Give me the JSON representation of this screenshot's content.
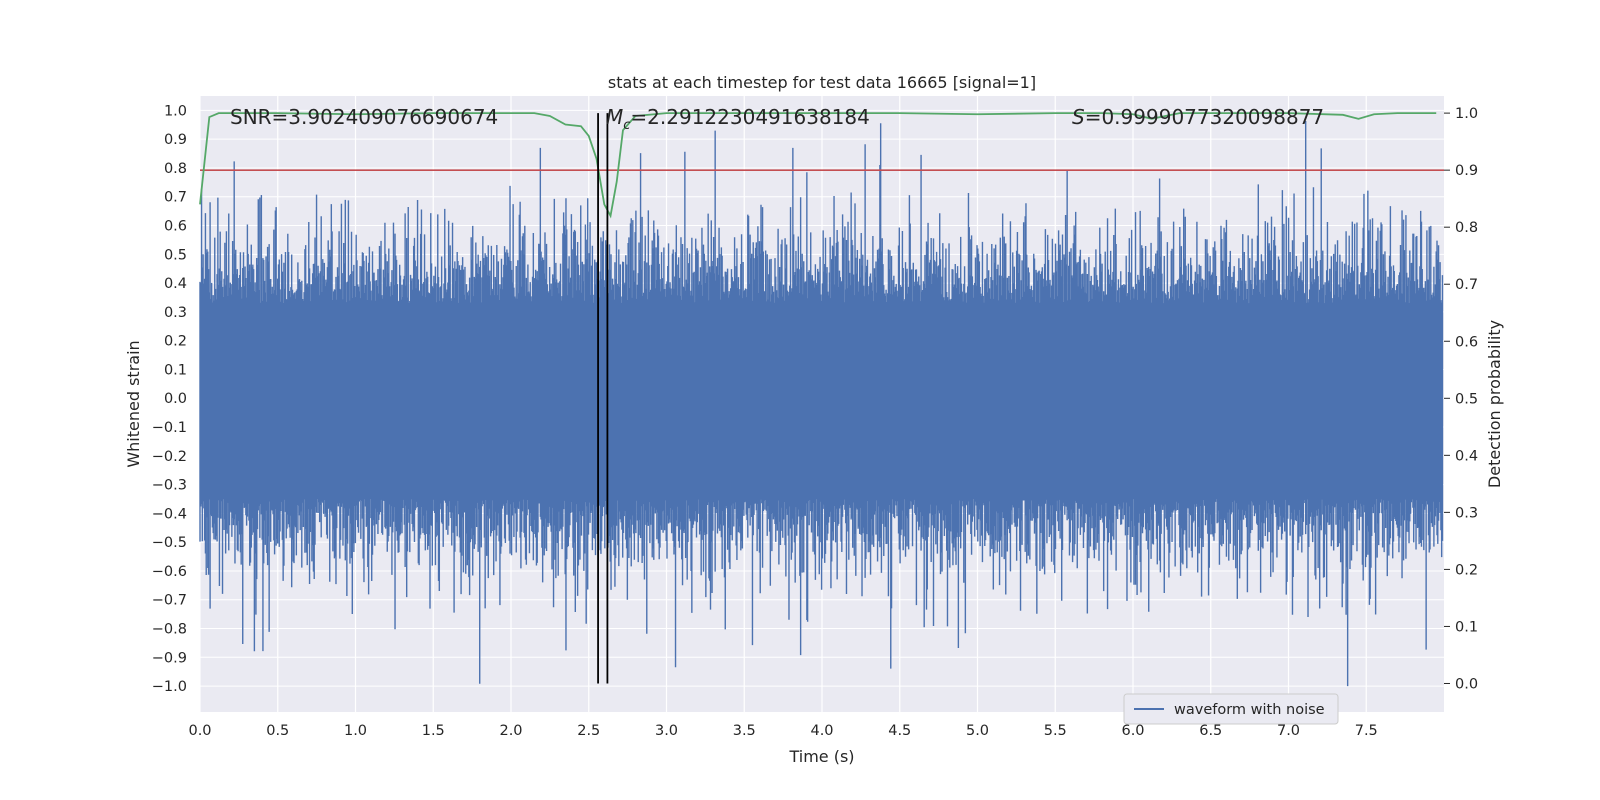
{
  "chart_data": {
    "type": "line",
    "title": "stats at each timestep for test data 16665 [signal=1]",
    "xlabel": "Time (s)",
    "ylabel_left": "Whitened strain",
    "ylabel_right": "Detection probability",
    "xlim": [
      0.0,
      8.0
    ],
    "ylim_left": [
      -1.09,
      1.05
    ],
    "ylim_right": [
      -0.05,
      1.03
    ],
    "x_ticks": [
      0.0,
      0.5,
      1.0,
      1.5,
      2.0,
      2.5,
      3.0,
      3.5,
      4.0,
      4.5,
      5.0,
      5.5,
      6.0,
      6.5,
      7.0,
      7.5
    ],
    "x_tick_labels": [
      "0.0",
      "0.5",
      "1.0",
      "1.5",
      "2.0",
      "2.5",
      "3.0",
      "3.5",
      "4.0",
      "4.5",
      "5.0",
      "5.5",
      "6.0",
      "6.5",
      "7.0",
      "7.5"
    ],
    "y_left_ticks": [
      -1.0,
      -0.9,
      -0.8,
      -0.7,
      -0.6,
      -0.5,
      -0.4,
      -0.3,
      -0.2,
      -0.1,
      0.0,
      0.1,
      0.2,
      0.3,
      0.4,
      0.5,
      0.6,
      0.7,
      0.8,
      0.9,
      1.0
    ],
    "y_left_tick_labels": [
      "−1.0",
      "−0.9",
      "−0.8",
      "−0.7",
      "−0.6",
      "−0.5",
      "−0.4",
      "−0.3",
      "−0.2",
      "−0.1",
      "0.0",
      "0.1",
      "0.2",
      "0.3",
      "0.4",
      "0.5",
      "0.6",
      "0.7",
      "0.8",
      "0.9",
      "1.0"
    ],
    "y_right_ticks": [
      0.0,
      0.1,
      0.2,
      0.3,
      0.4,
      0.5,
      0.6,
      0.7,
      0.8,
      0.9,
      1.0
    ],
    "y_right_tick_labels": [
      "0.0",
      "0.1",
      "0.2",
      "0.3",
      "0.4",
      "0.5",
      "0.6",
      "0.7",
      "0.8",
      "0.9",
      "1.0"
    ],
    "grid": true,
    "legend_location": "lower-right",
    "series": [
      {
        "name": "waveform with noise",
        "axis": "left",
        "color": "#4c72b0",
        "style": "dense noisy waveform",
        "sample_count": 1600,
        "seed": 16665
      },
      {
        "axis": "right",
        "color": "#55a868",
        "x": [
          0.0,
          0.06,
          0.12,
          0.5,
          1.0,
          1.5,
          2.0,
          2.15,
          2.25,
          2.35,
          2.45,
          2.5,
          2.55,
          2.6,
          2.64,
          2.68,
          2.72,
          2.8,
          3.0,
          3.5,
          4.0,
          4.5,
          5.0,
          5.5,
          5.8,
          6.0,
          6.12,
          6.3,
          6.5,
          7.0,
          7.35,
          7.45,
          7.55,
          7.7,
          7.95
        ],
        "y": [
          0.84,
          0.993,
          1.0,
          1.0,
          0.998,
          1.0,
          1.0,
          1.0,
          0.995,
          0.98,
          0.977,
          0.96,
          0.92,
          0.84,
          0.82,
          0.88,
          0.97,
          0.995,
          1.0,
          1.0,
          1.0,
          1.0,
          0.998,
          1.0,
          1.0,
          0.998,
          0.99,
          1.0,
          1.0,
          1.0,
          0.997,
          0.99,
          0.998,
          1.0,
          1.0
        ]
      },
      {
        "axis": "right",
        "color": "#c44e52",
        "style": "horizontal threshold",
        "y": 0.9
      }
    ],
    "vlines": [
      {
        "x": 2.56,
        "color": "#000000"
      },
      {
        "x": 2.62,
        "color": "#000000"
      }
    ],
    "annotations": {
      "snr": "SNR=3.902409076690674",
      "mc_symbol": "M",
      "mc_sub": "c",
      "mc_value": "=2.2912230491638184",
      "s_symbol": "S",
      "s_value": "=0.9999077320098877"
    }
  }
}
